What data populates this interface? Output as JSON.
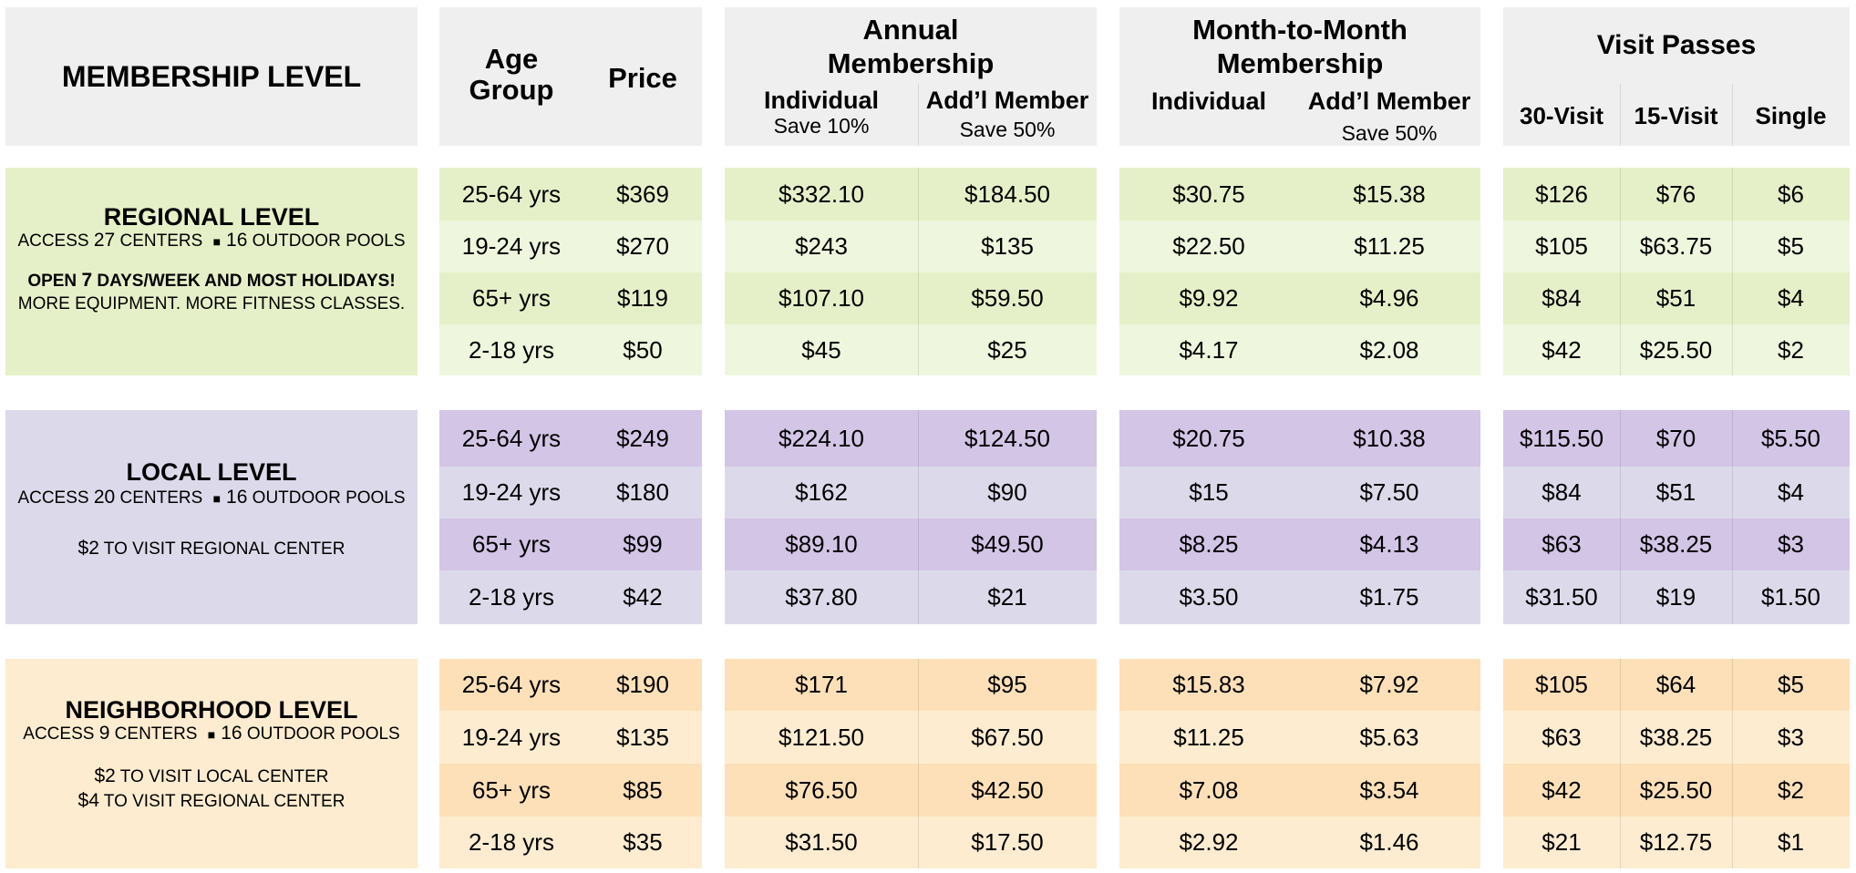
{
  "colors": {
    "header_bg": "#efefef",
    "regional_dark": "#e6f0c8",
    "regional_light": "#eef6dd",
    "local_dark": "#d3c5e6",
    "local_light": "#dcdaea",
    "neighborhood_dark": "#fde0b8",
    "neighborhood_light": "#fdecd0"
  },
  "header": {
    "membership_level": "MEMBERSHIP LEVEL",
    "age_group_1": "Age",
    "age_group_2": "Group",
    "price": "Price",
    "annual_1": "Annual",
    "annual_2": "Membership",
    "monthly_1": "Month-to-Month",
    "monthly_2": "Membership",
    "individual": "Individual",
    "save_10": "Save 10%",
    "addl_member": "Add’l Member",
    "save_50": "Save 50%",
    "visit_passes": "Visit Passes",
    "visit_30": "30-Visit",
    "visit_15": "15-Visit",
    "visit_single": "Single"
  },
  "levels": [
    {
      "name": "REGIONAL LEVEL",
      "access_pre": "ACCESS ",
      "access_centers_num": "27",
      "access_centers": " CENTERS",
      "pools_num": "16",
      "pools": " OUTDOOR POOLS",
      "note_1_pre": "OPEN ",
      "note_1_num": "7",
      "note_1_post": " DAYS/WEEK AND MOST HOLIDAYS!",
      "note_2": "MORE EQUIPMENT. MORE FITNESS CLASSES.",
      "rows": [
        [
          "25-64 yrs",
          "$369",
          "$332.10",
          "$184.50",
          "$30.75",
          "$15.38",
          "$126",
          "$76",
          "$6"
        ],
        [
          "19-24 yrs",
          "$270",
          "$243",
          "$135",
          "$22.50",
          "$11.25",
          "$105",
          "$63.75",
          "$5"
        ],
        [
          "65+ yrs",
          "$119",
          "$107.10",
          "$59.50",
          "$9.92",
          "$4.96",
          "$84",
          "$51",
          "$4"
        ],
        [
          "2-18 yrs",
          "$50",
          "$45",
          "$25",
          "$4.17",
          "$2.08",
          "$42",
          "$25.50",
          "$2"
        ]
      ]
    },
    {
      "name": "LOCAL LEVEL",
      "access_pre": "ACCESS ",
      "access_centers_num": "20",
      "access_centers": " CENTERS",
      "pools_num": "16",
      "pools": " OUTDOOR POOLS",
      "note_1_num": "$2",
      "note_1_post": " TO VISIT REGIONAL CENTER",
      "rows": [
        [
          "25-64 yrs",
          "$249",
          "$224.10",
          "$124.50",
          "$20.75",
          "$10.38",
          "$115.50",
          "$70",
          "$5.50"
        ],
        [
          "19-24 yrs",
          "$180",
          "$162",
          "$90",
          "$15",
          "$7.50",
          "$84",
          "$51",
          "$4"
        ],
        [
          "65+ yrs",
          "$99",
          "$89.10",
          "$49.50",
          "$8.25",
          "$4.13",
          "$63",
          "$38.25",
          "$3"
        ],
        [
          "2-18 yrs",
          "$42",
          "$37.80",
          "$21",
          "$3.50",
          "$1.75",
          "$31.50",
          "$19",
          "$1.50"
        ]
      ]
    },
    {
      "name": "NEIGHBORHOOD LEVEL",
      "access_pre": "ACCESS ",
      "access_centers_num": "9",
      "access_centers": " CENTERS",
      "pools_num": "16",
      "pools": " OUTDOOR POOLS",
      "note_1_num": "$2",
      "note_1_post": " TO VISIT LOCAL CENTER",
      "note_2_num": "$4",
      "note_2_post": " TO VISIT REGIONAL CENTER",
      "rows": [
        [
          "25-64 yrs",
          "$190",
          "$171",
          "$95",
          "$15.83",
          "$7.92",
          "$105",
          "$64",
          "$5"
        ],
        [
          "19-24 yrs",
          "$135",
          "$121.50",
          "$67.50",
          "$11.25",
          "$5.63",
          "$63",
          "$38.25",
          "$3"
        ],
        [
          "65+ yrs",
          "$85",
          "$76.50",
          "$42.50",
          "$7.08",
          "$3.54",
          "$42",
          "$25.50",
          "$2"
        ],
        [
          "2-18 yrs",
          "$35",
          "$31.50",
          "$17.50",
          "$2.92",
          "$1.46",
          "$21",
          "$12.75",
          "$1"
        ]
      ]
    }
  ]
}
